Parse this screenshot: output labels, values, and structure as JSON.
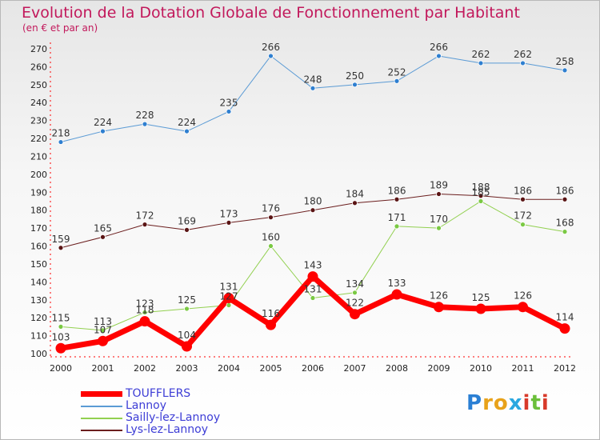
{
  "title": "Evolution de la Dotation Globale de Fonctionnement par Habitant",
  "subtitle": "(en € et par an)",
  "logo_text": "Proxiti",
  "chart_data": {
    "type": "line",
    "title": "Evolution de la Dotation Globale de Fonctionnement par Habitant",
    "ylabel": "(en € et par an)",
    "xlabel": "",
    "ylim": [
      100,
      270
    ],
    "y_ticks": [
      100,
      110,
      120,
      130,
      140,
      150,
      160,
      170,
      180,
      190,
      200,
      210,
      220,
      230,
      240,
      250,
      260,
      270
    ],
    "x": [
      "2000",
      "2001",
      "2002",
      "2003",
      "2004",
      "2005",
      "2006",
      "2007",
      "2008",
      "2009",
      "2010",
      "2011",
      "2012"
    ],
    "grid": false,
    "legend_position": "bottom-left",
    "series": [
      {
        "name": "Lannoy",
        "color": "#5b9bd5",
        "marker": "#2f7fd0",
        "width": 1,
        "values": [
          218,
          224,
          228,
          224,
          235,
          266,
          248,
          250,
          252,
          266,
          262,
          262,
          258
        ]
      },
      {
        "name": "Sailly-lez-Lannoy",
        "color": "#92d050",
        "marker": "#7ac943",
        "width": 1,
        "values": [
          115,
          113,
          123,
          125,
          127,
          160,
          131,
          134,
          171,
          170,
          185,
          172,
          168
        ]
      },
      {
        "name": "Lys-lez-Lannoy",
        "color": "#6b1e1e",
        "marker": "#5a1414",
        "width": 1,
        "values": [
          159,
          165,
          172,
          169,
          173,
          176,
          180,
          184,
          186,
          189,
          188,
          186,
          186
        ]
      },
      {
        "name": "TOUFFLERS",
        "color": "#ff0000",
        "marker": "#ff0000",
        "width": 7,
        "values": [
          103,
          107,
          118,
          104,
          131,
          116,
          143,
          122,
          133,
          126,
          125,
          126,
          114
        ]
      }
    ]
  },
  "legend": [
    {
      "label": "TOUFFLERS",
      "color": "#ff0000",
      "thickness": 7
    },
    {
      "label": "Lannoy",
      "color": "#5b9bd5",
      "thickness": 2
    },
    {
      "label": "Sailly-lez-Lannoy",
      "color": "#92d050",
      "thickness": 2
    },
    {
      "label": "Lys-lez-Lannoy",
      "color": "#6b1e1e",
      "thickness": 2
    }
  ]
}
